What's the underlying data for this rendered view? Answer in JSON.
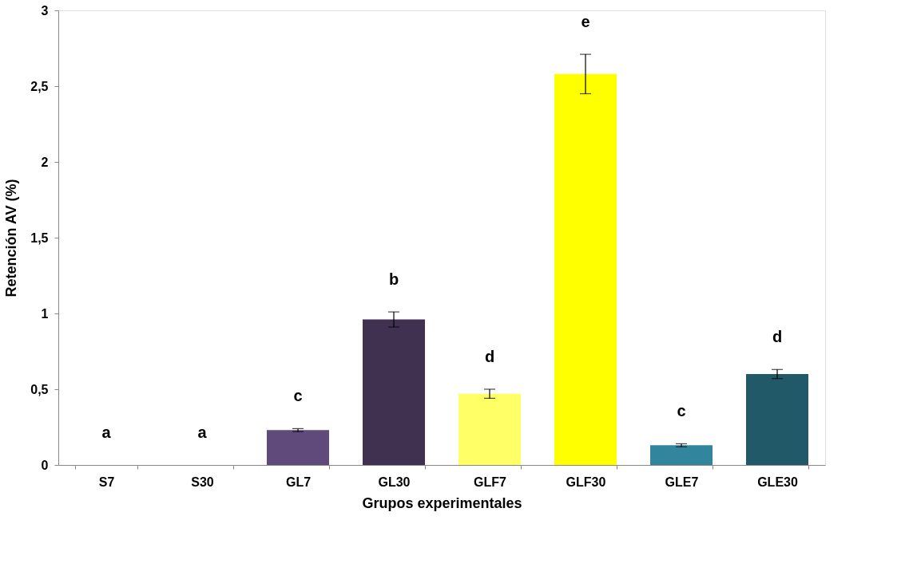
{
  "chart_data": {
    "type": "bar",
    "xlabel": "Grupos experimentales",
    "ylabel": "Retención AV (%)",
    "categories": [
      "S7",
      "S30",
      "GL7",
      "GL30",
      "GLF7",
      "GLF30",
      "GLE7",
      "GLE30"
    ],
    "values": [
      0,
      0,
      0.23,
      0.96,
      0.47,
      2.58,
      0.13,
      0.6
    ],
    "errors": [
      null,
      null,
      0.01,
      0.05,
      0.03,
      0.13,
      0.01,
      0.03
    ],
    "colors": [
      "#ffffff",
      "#ffffff",
      "#604a7b",
      "#403151",
      "#ffff66",
      "#ffff00",
      "#31859c",
      "#215968"
    ],
    "ylim": [
      0,
      3
    ],
    "yticks": [
      0,
      {
        "value": 0.5,
        "label": "0,5"
      },
      1,
      {
        "value": 1.5,
        "label": "1,5"
      },
      2,
      {
        "value": 2.5,
        "label": "2,5"
      },
      3
    ],
    "grid": false,
    "legend": false,
    "value_labels": [
      "a",
      "a",
      "c",
      "b",
      "d",
      "e",
      "c",
      "d"
    ]
  }
}
